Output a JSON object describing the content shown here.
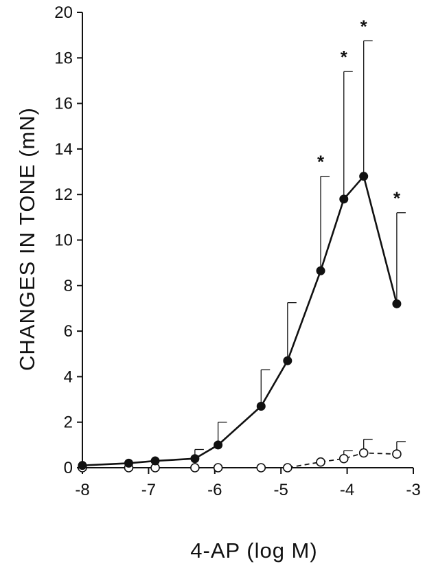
{
  "chart_data": {
    "type": "line",
    "title": "",
    "xlabel": "4-AP (log M)",
    "ylabel": "CHANGES IN TONE (mN)",
    "xlim": [
      -8,
      -3
    ],
    "ylim": [
      0,
      20
    ],
    "xticks": [
      -8,
      -7,
      -6,
      -5,
      -4,
      -3
    ],
    "xtick_labels": [
      "-8",
      "-7",
      "-6",
      "-5",
      "-4",
      "-3"
    ],
    "yticks": [
      0,
      2,
      4,
      6,
      8,
      10,
      12,
      14,
      16,
      18,
      20
    ],
    "ytick_labels": [
      "0",
      "2",
      "4",
      "6",
      "8",
      "10",
      "12",
      "14",
      "16",
      "18",
      "20"
    ],
    "grid": false,
    "legend": "none",
    "series": [
      {
        "marker": "filled-circle",
        "line_style": "solid",
        "color": "#111111",
        "x": [
          -8,
          -7.3,
          -6.9,
          -6.3,
          -5.95,
          -5.3,
          -4.9,
          -4.4,
          -4.05,
          -3.75,
          -3.25
        ],
        "y": [
          0.1,
          0.2,
          0.3,
          0.4,
          1.0,
          2.7,
          4.7,
          8.65,
          11.8,
          12.8,
          7.2
        ],
        "error_upper": [
          null,
          null,
          null,
          0.8,
          2.0,
          4.3,
          7.25,
          12.8,
          17.4,
          18.75,
          11.2
        ],
        "annotations": [
          {
            "x": -4.4,
            "text": "*"
          },
          {
            "x": -4.05,
            "text": "*"
          },
          {
            "x": -3.75,
            "text": "*"
          },
          {
            "x": -3.25,
            "text": "*"
          }
        ]
      },
      {
        "marker": "open-circle",
        "line_style": "dashed",
        "color": "#111111",
        "x": [
          -8,
          -7.3,
          -6.9,
          -6.3,
          -5.95,
          -5.3,
          -4.9,
          -4.4,
          -4.05,
          -3.75,
          -3.25
        ],
        "y": [
          0.0,
          0.0,
          0.0,
          0.0,
          0.0,
          0.0,
          0.0,
          0.25,
          0.4,
          0.65,
          0.6
        ],
        "error_upper": [
          null,
          null,
          null,
          null,
          null,
          null,
          null,
          null,
          0.75,
          1.25,
          1.15
        ]
      }
    ]
  }
}
